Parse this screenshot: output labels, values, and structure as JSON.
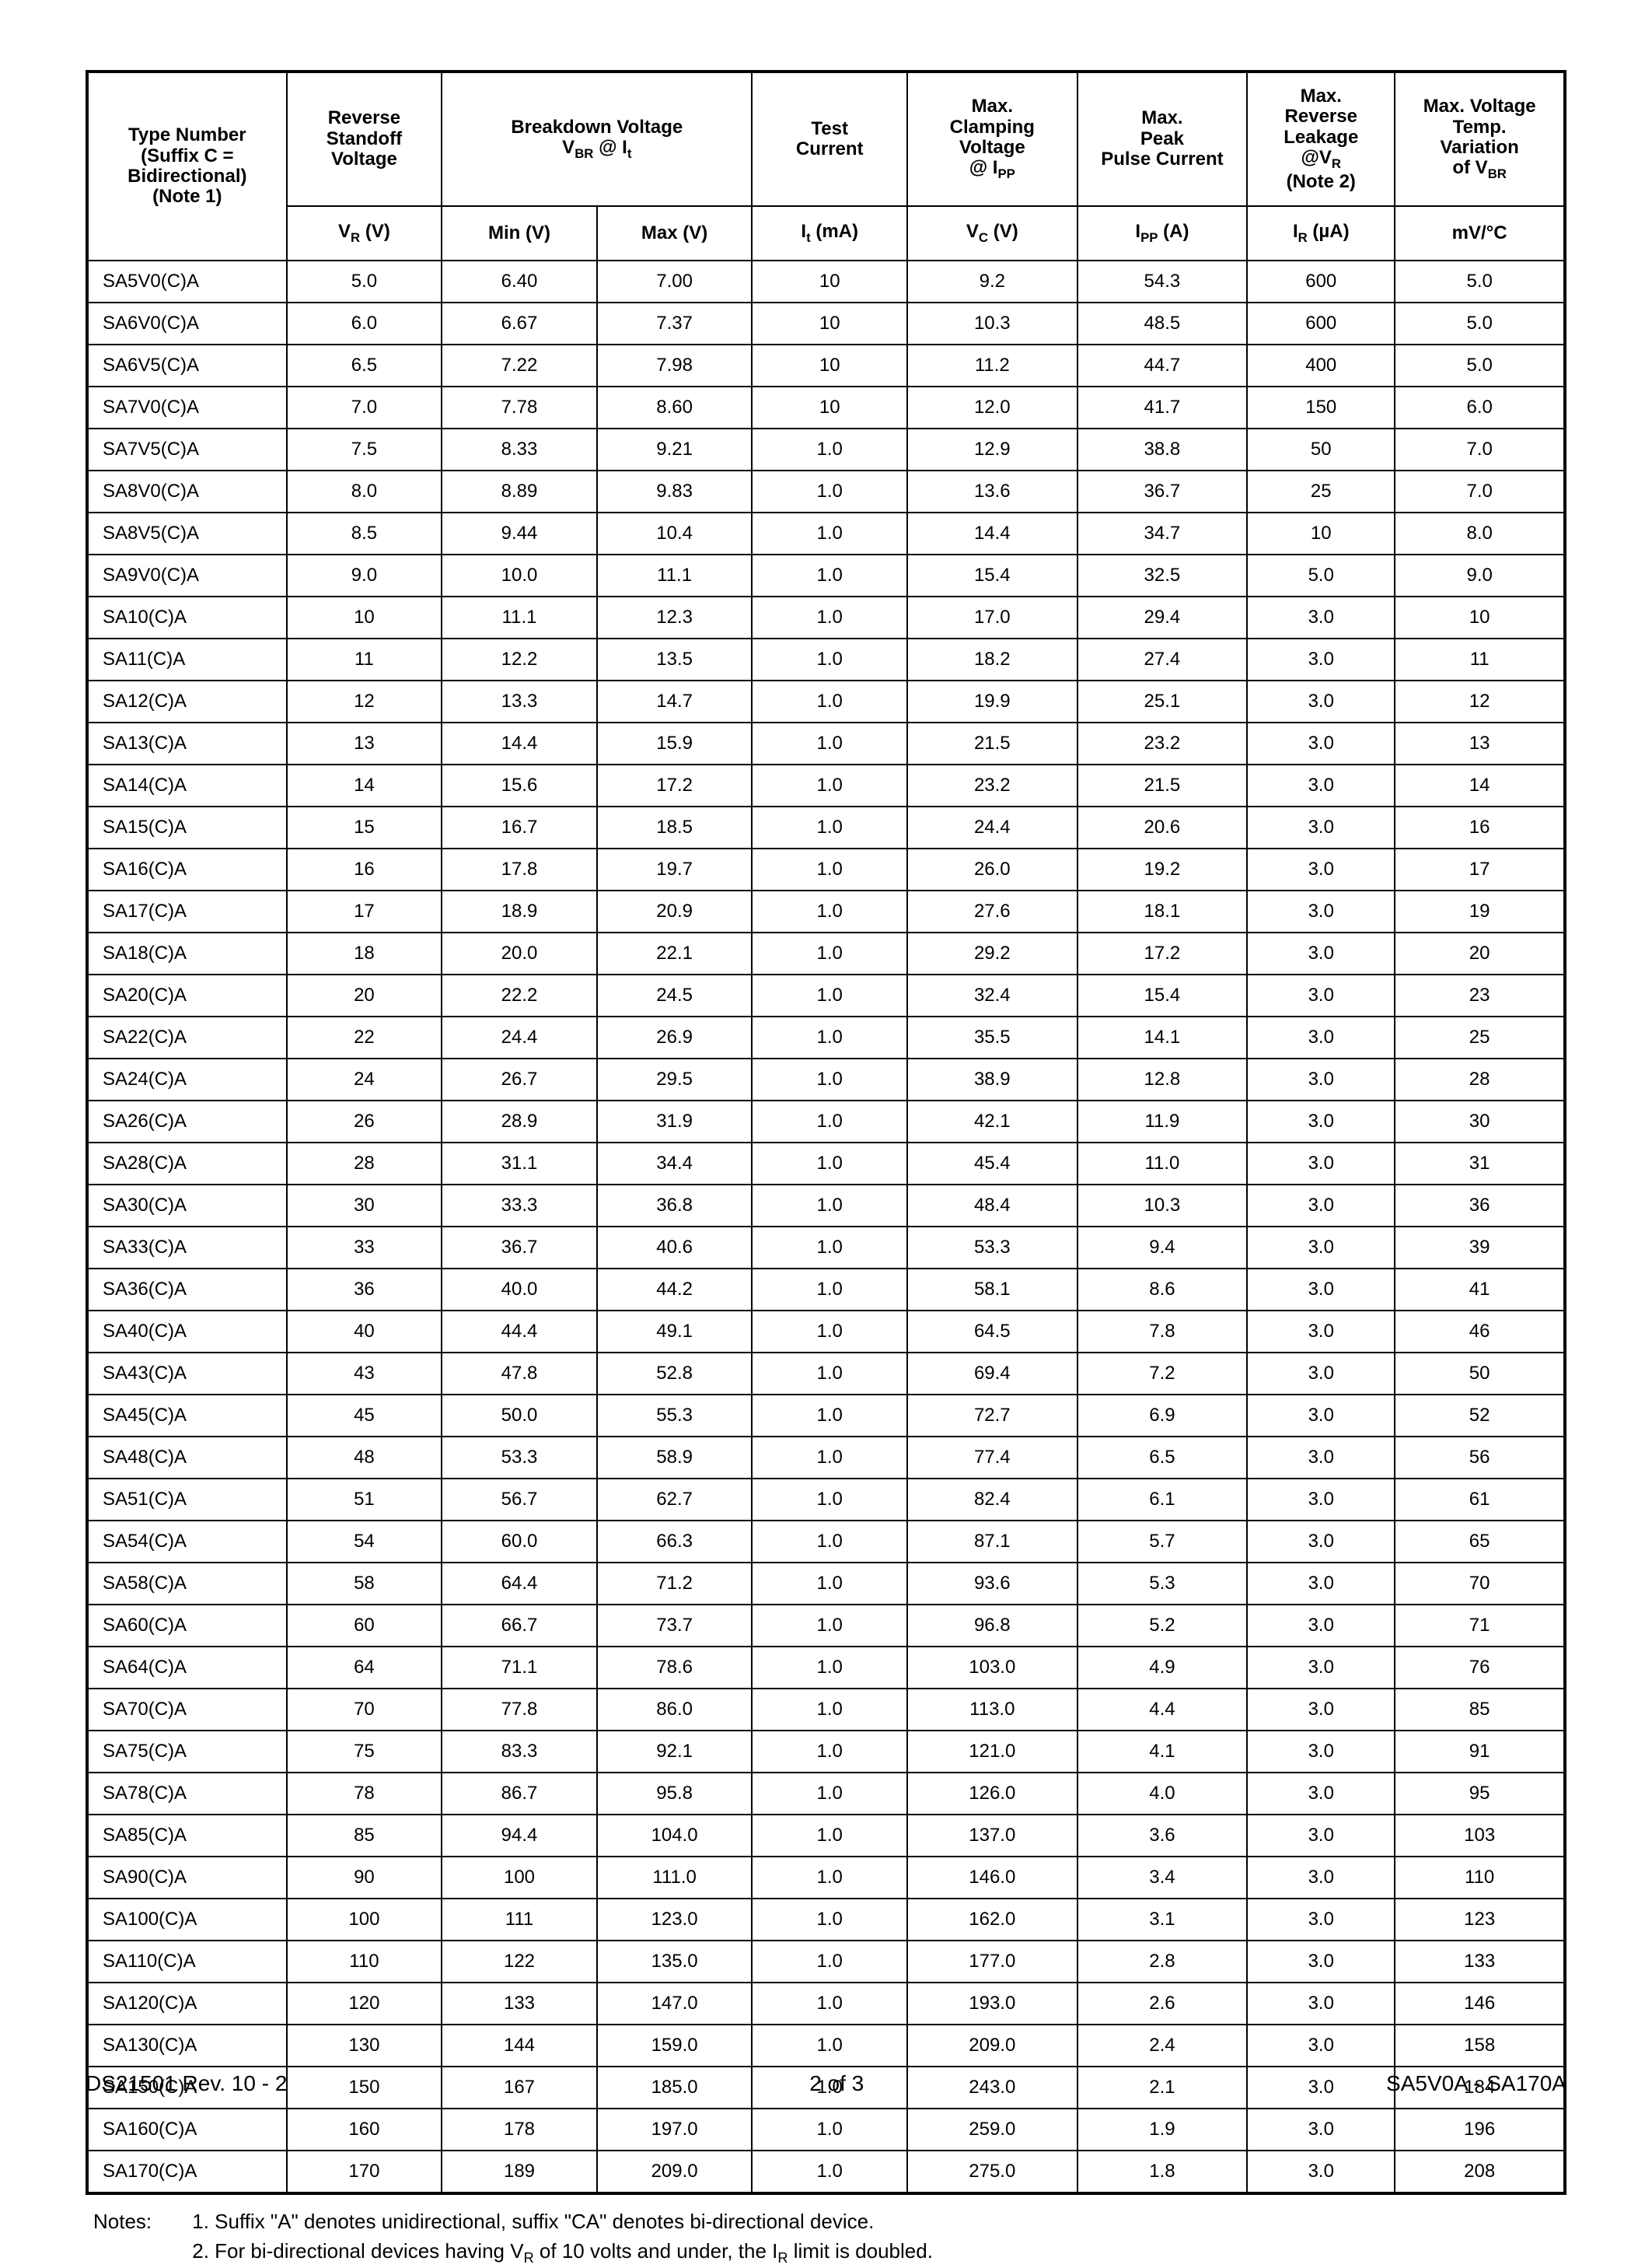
{
  "table": {
    "border_color": "#000000",
    "background_color": "#ffffff",
    "font_family": "Arial",
    "header_fontsize_pt": 18,
    "body_fontsize_pt": 18,
    "col_widths_pct": [
      13.5,
      10.5,
      10.5,
      10.5,
      10.5,
      11.5,
      11.5,
      10,
      11.5
    ],
    "headers_top": {
      "type_number": "Type Number\n(Suffix C =\nBidirectional)\n(Note 1)",
      "reverse_standoff": "Reverse\nStandoff\nVoltage",
      "breakdown_voltage": "Breakdown Voltage\nV_BR @ I_t",
      "test_current": "Test\nCurrent",
      "max_clamping": "Max.\nClamping\nVoltage\n@ I_PP",
      "max_peak_pulse": "Max.\nPeak\nPulse Current",
      "max_reverse_leakage": "Max.\nReverse\nLeakage\n@V_R\n(Note 2)",
      "max_voltage_temp": "Max. Voltage\nTemp.\nVariation\nof V_BR"
    },
    "headers_sub": {
      "vr": "V_R (V)",
      "min": "Min (V)",
      "max": "Max (V)",
      "it": "I_t (mA)",
      "vc": "V_C (V)",
      "ipp": "I_PP (A)",
      "ir": "I_R (µA)",
      "mvc": "mV/°C"
    },
    "rows": [
      [
        "SA5V0(C)A",
        "5.0",
        "6.40",
        "7.00",
        "10",
        "9.2",
        "54.3",
        "600",
        "5.0"
      ],
      [
        "SA6V0(C)A",
        "6.0",
        "6.67",
        "7.37",
        "10",
        "10.3",
        "48.5",
        "600",
        "5.0"
      ],
      [
        "SA6V5(C)A",
        "6.5",
        "7.22",
        "7.98",
        "10",
        "11.2",
        "44.7",
        "400",
        "5.0"
      ],
      [
        "SA7V0(C)A",
        "7.0",
        "7.78",
        "8.60",
        "10",
        "12.0",
        "41.7",
        "150",
        "6.0"
      ],
      [
        "SA7V5(C)A",
        "7.5",
        "8.33",
        "9.21",
        "1.0",
        "12.9",
        "38.8",
        "50",
        "7.0"
      ],
      [
        "SA8V0(C)A",
        "8.0",
        "8.89",
        "9.83",
        "1.0",
        "13.6",
        "36.7",
        "25",
        "7.0"
      ],
      [
        "SA8V5(C)A",
        "8.5",
        "9.44",
        "10.4",
        "1.0",
        "14.4",
        "34.7",
        "10",
        "8.0"
      ],
      [
        "SA9V0(C)A",
        "9.0",
        "10.0",
        "11.1",
        "1.0",
        "15.4",
        "32.5",
        "5.0",
        "9.0"
      ],
      [
        "SA10(C)A",
        "10",
        "11.1",
        "12.3",
        "1.0",
        "17.0",
        "29.4",
        "3.0",
        "10"
      ],
      [
        "SA11(C)A",
        "11",
        "12.2",
        "13.5",
        "1.0",
        "18.2",
        "27.4",
        "3.0",
        "11"
      ],
      [
        "SA12(C)A",
        "12",
        "13.3",
        "14.7",
        "1.0",
        "19.9",
        "25.1",
        "3.0",
        "12"
      ],
      [
        "SA13(C)A",
        "13",
        "14.4",
        "15.9",
        "1.0",
        "21.5",
        "23.2",
        "3.0",
        "13"
      ],
      [
        "SA14(C)A",
        "14",
        "15.6",
        "17.2",
        "1.0",
        "23.2",
        "21.5",
        "3.0",
        "14"
      ],
      [
        "SA15(C)A",
        "15",
        "16.7",
        "18.5",
        "1.0",
        "24.4",
        "20.6",
        "3.0",
        "16"
      ],
      [
        "SA16(C)A",
        "16",
        "17.8",
        "19.7",
        "1.0",
        "26.0",
        "19.2",
        "3.0",
        "17"
      ],
      [
        "SA17(C)A",
        "17",
        "18.9",
        "20.9",
        "1.0",
        "27.6",
        "18.1",
        "3.0",
        "19"
      ],
      [
        "SA18(C)A",
        "18",
        "20.0",
        "22.1",
        "1.0",
        "29.2",
        "17.2",
        "3.0",
        "20"
      ],
      [
        "SA20(C)A",
        "20",
        "22.2",
        "24.5",
        "1.0",
        "32.4",
        "15.4",
        "3.0",
        "23"
      ],
      [
        "SA22(C)A",
        "22",
        "24.4",
        "26.9",
        "1.0",
        "35.5",
        "14.1",
        "3.0",
        "25"
      ],
      [
        "SA24(C)A",
        "24",
        "26.7",
        "29.5",
        "1.0",
        "38.9",
        "12.8",
        "3.0",
        "28"
      ],
      [
        "SA26(C)A",
        "26",
        "28.9",
        "31.9",
        "1.0",
        "42.1",
        "11.9",
        "3.0",
        "30"
      ],
      [
        "SA28(C)A",
        "28",
        "31.1",
        "34.4",
        "1.0",
        "45.4",
        "11.0",
        "3.0",
        "31"
      ],
      [
        "SA30(C)A",
        "30",
        "33.3",
        "36.8",
        "1.0",
        "48.4",
        "10.3",
        "3.0",
        "36"
      ],
      [
        "SA33(C)A",
        "33",
        "36.7",
        "40.6",
        "1.0",
        "53.3",
        "9.4",
        "3.0",
        "39"
      ],
      [
        "SA36(C)A",
        "36",
        "40.0",
        "44.2",
        "1.0",
        "58.1",
        "8.6",
        "3.0",
        "41"
      ],
      [
        "SA40(C)A",
        "40",
        "44.4",
        "49.1",
        "1.0",
        "64.5",
        "7.8",
        "3.0",
        "46"
      ],
      [
        "SA43(C)A",
        "43",
        "47.8",
        "52.8",
        "1.0",
        "69.4",
        "7.2",
        "3.0",
        "50"
      ],
      [
        "SA45(C)A",
        "45",
        "50.0",
        "55.3",
        "1.0",
        "72.7",
        "6.9",
        "3.0",
        "52"
      ],
      [
        "SA48(C)A",
        "48",
        "53.3",
        "58.9",
        "1.0",
        "77.4",
        "6.5",
        "3.0",
        "56"
      ],
      [
        "SA51(C)A",
        "51",
        "56.7",
        "62.7",
        "1.0",
        "82.4",
        "6.1",
        "3.0",
        "61"
      ],
      [
        "SA54(C)A",
        "54",
        "60.0",
        "66.3",
        "1.0",
        "87.1",
        "5.7",
        "3.0",
        "65"
      ],
      [
        "SA58(C)A",
        "58",
        "64.4",
        "71.2",
        "1.0",
        "93.6",
        "5.3",
        "3.0",
        "70"
      ],
      [
        "SA60(C)A",
        "60",
        "66.7",
        "73.7",
        "1.0",
        "96.8",
        "5.2",
        "3.0",
        "71"
      ],
      [
        "SA64(C)A",
        "64",
        "71.1",
        "78.6",
        "1.0",
        "103.0",
        "4.9",
        "3.0",
        "76"
      ],
      [
        "SA70(C)A",
        "70",
        "77.8",
        "86.0",
        "1.0",
        "113.0",
        "4.4",
        "3.0",
        "85"
      ],
      [
        "SA75(C)A",
        "75",
        "83.3",
        "92.1",
        "1.0",
        "121.0",
        "4.1",
        "3.0",
        "91"
      ],
      [
        "SA78(C)A",
        "78",
        "86.7",
        "95.8",
        "1.0",
        "126.0",
        "4.0",
        "3.0",
        "95"
      ],
      [
        "SA85(C)A",
        "85",
        "94.4",
        "104.0",
        "1.0",
        "137.0",
        "3.6",
        "3.0",
        "103"
      ],
      [
        "SA90(C)A",
        "90",
        "100",
        "111.0",
        "1.0",
        "146.0",
        "3.4",
        "3.0",
        "110"
      ],
      [
        "SA100(C)A",
        "100",
        "111",
        "123.0",
        "1.0",
        "162.0",
        "3.1",
        "3.0",
        "123"
      ],
      [
        "SA110(C)A",
        "110",
        "122",
        "135.0",
        "1.0",
        "177.0",
        "2.8",
        "3.0",
        "133"
      ],
      [
        "SA120(C)A",
        "120",
        "133",
        "147.0",
        "1.0",
        "193.0",
        "2.6",
        "3.0",
        "146"
      ],
      [
        "SA130(C)A",
        "130",
        "144",
        "159.0",
        "1.0",
        "209.0",
        "2.4",
        "3.0",
        "158"
      ],
      [
        "SA150(C)A",
        "150",
        "167",
        "185.0",
        "1.0",
        "243.0",
        "2.1",
        "3.0",
        "184"
      ],
      [
        "SA160(C)A",
        "160",
        "178",
        "197.0",
        "1.0",
        "259.0",
        "1.9",
        "3.0",
        "196"
      ],
      [
        "SA170(C)A",
        "170",
        "189",
        "209.0",
        "1.0",
        "275.0",
        "1.8",
        "3.0",
        "208"
      ]
    ]
  },
  "notes": {
    "label": "Notes:",
    "note1": "1. Suffix \"A\" denotes unidirectional, suffix \"CA\" denotes bi-directional device.",
    "note2": "2. For bi-directional devices having V_R of 10 volts and under, the I_R limit is doubled."
  },
  "footer": {
    "left": "DS21501 Rev. 10 - 2",
    "center": "2 of 3",
    "right": "SA5V0A - SA170A"
  }
}
